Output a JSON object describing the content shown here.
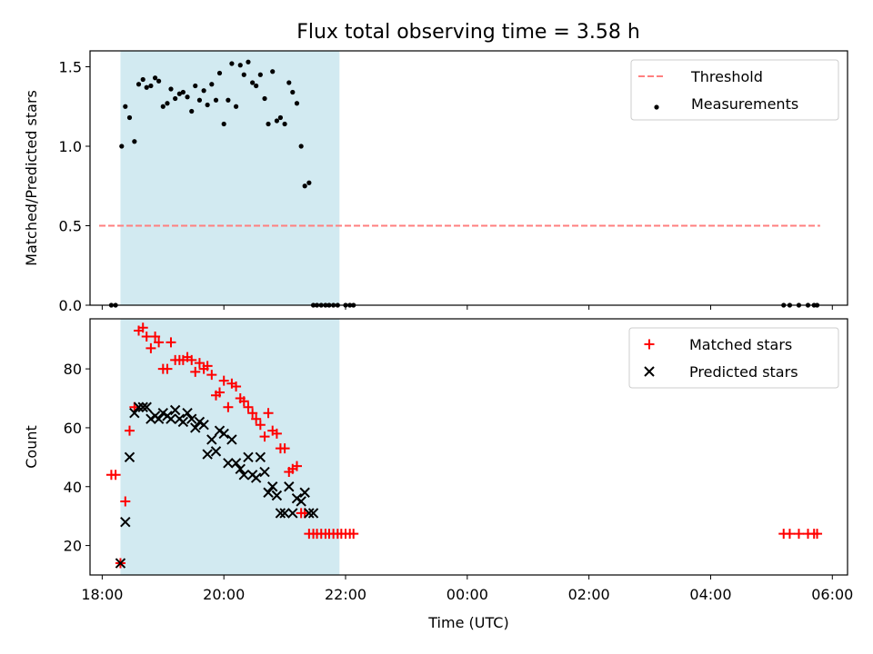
{
  "title": "Flux total observing time = 3.58 h",
  "colors": {
    "shade": "#add8e6",
    "threshold": "#ff7f7f",
    "measurement": "#000000",
    "matched": "#ff0000",
    "predicted": "#000000"
  },
  "chart_data": [
    {
      "type": "scatter",
      "ylabel": "Matched/Predicted stars",
      "xlim": [
        17.8,
        30.25
      ],
      "ylim": [
        0,
        1.6
      ],
      "yticks": [
        0.0,
        0.5,
        1.0,
        1.5
      ],
      "ytick_labels": [
        "0.0",
        "0.5",
        "1.0",
        "1.5"
      ],
      "shaded_region": [
        18.3,
        21.9
      ],
      "threshold": {
        "label": "Threshold",
        "value": 0.5,
        "x_range": [
          17.95,
          29.8
        ]
      },
      "legend": [
        "Threshold",
        "Measurements"
      ],
      "legend_position": "top-right",
      "series": [
        {
          "name": "Measurements",
          "x": [
            18.15,
            18.22,
            18.32,
            18.38,
            18.45,
            18.53,
            18.6,
            18.67,
            18.73,
            18.8,
            18.87,
            18.93,
            19.0,
            19.07,
            19.13,
            19.2,
            19.27,
            19.33,
            19.4,
            19.47,
            19.53,
            19.6,
            19.67,
            19.73,
            19.8,
            19.87,
            19.93,
            20.0,
            20.07,
            20.13,
            20.2,
            20.27,
            20.33,
            20.4,
            20.47,
            20.53,
            20.6,
            20.67,
            20.73,
            20.8,
            20.87,
            20.93,
            21.0,
            21.07,
            21.13,
            21.2,
            21.27,
            21.33,
            21.4,
            21.47,
            21.53,
            21.6,
            21.67,
            21.73,
            21.8,
            21.87,
            22.0,
            22.07,
            22.13,
            29.2,
            29.3,
            29.45,
            29.6,
            29.7,
            29.75
          ],
          "y": [
            0.0,
            0.0,
            1.0,
            1.25,
            1.18,
            1.03,
            1.39,
            1.42,
            1.37,
            1.38,
            1.43,
            1.41,
            1.25,
            1.27,
            1.36,
            1.3,
            1.33,
            1.34,
            1.31,
            1.22,
            1.38,
            1.29,
            1.35,
            1.26,
            1.39,
            1.29,
            1.46,
            1.14,
            1.29,
            1.52,
            1.25,
            1.51,
            1.45,
            1.53,
            1.4,
            1.38,
            1.45,
            1.3,
            1.14,
            1.47,
            1.16,
            1.18,
            1.14,
            1.4,
            1.34,
            1.27,
            1.0,
            0.75,
            0.77,
            0.0,
            0.0,
            0.0,
            0.0,
            0.0,
            0.0,
            0.0,
            0.0,
            0.0,
            0.0,
            0.0,
            0.0,
            0.0,
            0.0,
            0.0,
            0.0
          ]
        }
      ]
    },
    {
      "type": "scatter",
      "title": "",
      "xlabel": "Time (UTC)",
      "ylabel": "Count",
      "xlim": [
        17.8,
        30.25
      ],
      "ylim": [
        10,
        97
      ],
      "yticks": [
        20,
        40,
        60,
        80
      ],
      "ytick_labels": [
        "20",
        "40",
        "60",
        "80"
      ],
      "xticks": [
        18,
        20,
        22,
        24,
        26,
        28,
        30
      ],
      "xtick_labels": [
        "18:00",
        "20:00",
        "22:00",
        "00:00",
        "02:00",
        "04:00",
        "06:00"
      ],
      "shaded_region": [
        18.3,
        21.9
      ],
      "legend": [
        "Matched stars",
        "Predicted stars"
      ],
      "legend_position": "top-right",
      "series": [
        {
          "name": "Matched stars",
          "x": [
            18.15,
            18.22,
            18.3,
            18.38,
            18.45,
            18.53,
            18.6,
            18.67,
            18.73,
            18.8,
            18.87,
            18.93,
            19.0,
            19.07,
            19.13,
            19.2,
            19.27,
            19.33,
            19.4,
            19.47,
            19.53,
            19.6,
            19.67,
            19.73,
            19.8,
            19.87,
            19.93,
            20.0,
            20.07,
            20.13,
            20.2,
            20.27,
            20.33,
            20.4,
            20.47,
            20.53,
            20.6,
            20.67,
            20.73,
            20.8,
            20.87,
            20.93,
            21.0,
            21.07,
            21.13,
            21.2,
            21.27,
            21.33,
            21.4,
            21.47,
            21.53,
            21.6,
            21.67,
            21.73,
            21.8,
            21.87,
            21.93,
            22.0,
            22.07,
            22.13,
            29.2,
            29.3,
            29.45,
            29.6,
            29.7,
            29.75
          ],
          "y": [
            44,
            44,
            14,
            35,
            59,
            67,
            93,
            94,
            91,
            87,
            91,
            89,
            80,
            80,
            89,
            83,
            83,
            83,
            84,
            83,
            79,
            82,
            80,
            81,
            78,
            71,
            72,
            76,
            67,
            75,
            74,
            70,
            69,
            67,
            65,
            63,
            61,
            57,
            65,
            59,
            58,
            53,
            53,
            45,
            46,
            47,
            31,
            31,
            24,
            24,
            24,
            24,
            24,
            24,
            24,
            24,
            24,
            24,
            24,
            24,
            24,
            24,
            24,
            24,
            24,
            24
          ]
        },
        {
          "name": "Predicted stars",
          "x": [
            18.3,
            18.38,
            18.45,
            18.53,
            18.6,
            18.67,
            18.73,
            18.8,
            18.87,
            18.93,
            19.0,
            19.07,
            19.13,
            19.2,
            19.27,
            19.33,
            19.4,
            19.47,
            19.53,
            19.6,
            19.67,
            19.73,
            19.8,
            19.87,
            19.93,
            20.0,
            20.07,
            20.13,
            20.2,
            20.27,
            20.33,
            20.4,
            20.47,
            20.53,
            20.6,
            20.67,
            20.73,
            20.8,
            20.87,
            20.93,
            21.0,
            21.07,
            21.13,
            21.2,
            21.27,
            21.33,
            21.4,
            21.47
          ],
          "y": [
            14,
            28,
            50,
            65,
            67,
            67,
            67,
            63,
            64,
            63,
            65,
            64,
            63,
            66,
            63,
            62,
            65,
            63,
            60,
            62,
            61,
            51,
            56,
            52,
            59,
            58,
            48,
            56,
            48,
            46,
            44,
            50,
            44,
            43,
            50,
            45,
            38,
            40,
            37,
            31,
            31,
            40,
            31,
            36,
            35,
            38,
            31,
            31
          ]
        }
      ]
    }
  ]
}
